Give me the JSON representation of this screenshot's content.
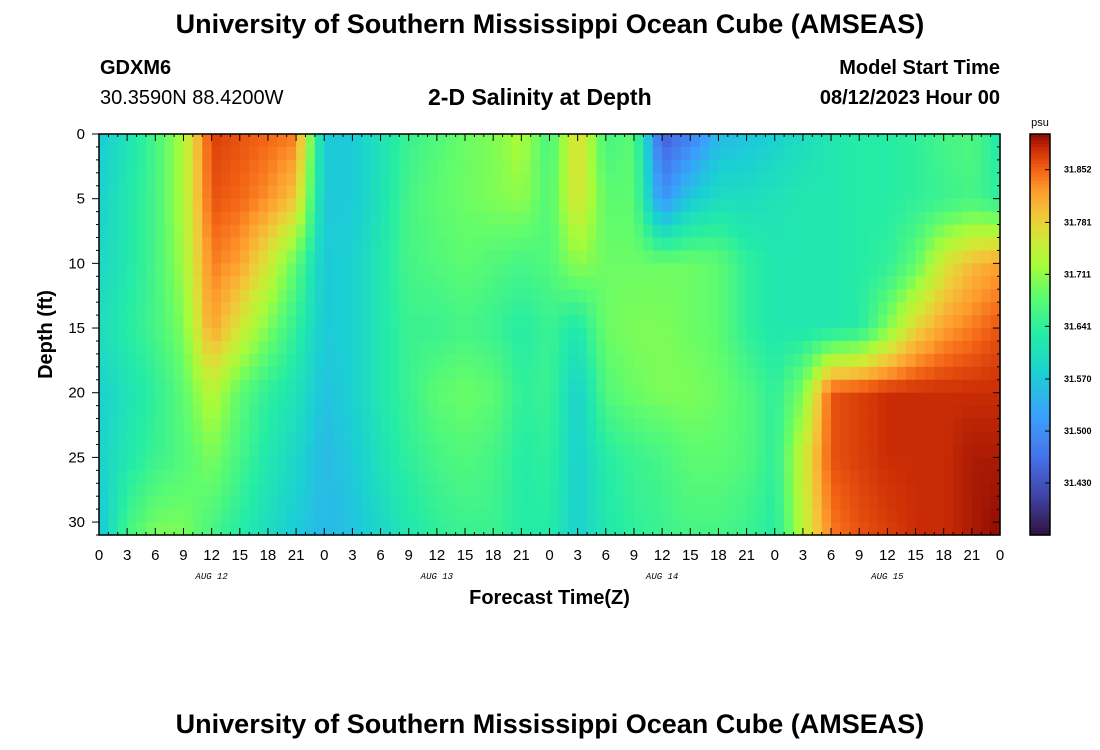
{
  "page": {
    "title": "University of Southern Mississippi Ocean Cube (AMSEAS)",
    "footer_title": "University of Southern Mississippi Ocean Cube (AMSEAS)",
    "station": "GDXM6",
    "coords": "30.3590N  88.4200W",
    "plot_title": "2-D Salinity at Depth",
    "start_label": "Model Start Time",
    "start_value": "08/12/2023 Hour 00"
  },
  "chart_data": {
    "type": "heatmap",
    "title": "2-D Salinity at Depth",
    "xlabel": "Forecast Time(Z)",
    "ylabel": "Depth (ft)",
    "x_hours_range": [
      0,
      96
    ],
    "ylim": [
      0,
      31
    ],
    "y_ticks": [
      0,
      5,
      10,
      15,
      20,
      25,
      30
    ],
    "x_tick_labels": [
      "0",
      "3",
      "6",
      "9",
      "12",
      "15",
      "18",
      "21",
      "0",
      "3",
      "6",
      "9",
      "12",
      "15",
      "18",
      "21",
      "0",
      "3",
      "6",
      "9",
      "12",
      "15",
      "18",
      "21",
      "0",
      "3",
      "6",
      "9",
      "12",
      "15",
      "18",
      "21",
      "0"
    ],
    "day_labels": [
      {
        "label": "AUG 12",
        "hour": 12
      },
      {
        "label": "AUG 13",
        "hour": 36
      },
      {
        "label": "AUG 14",
        "hour": 60
      },
      {
        "label": "AUG 15",
        "hour": 84
      }
    ],
    "colorbar": {
      "unit": "psu",
      "min": 31.36,
      "max": 31.9,
      "ticks": [
        "31.852",
        "31.781",
        "31.711",
        "31.641",
        "31.570",
        "31.500",
        "31.430"
      ],
      "tick_values": [
        31.852,
        31.781,
        31.711,
        31.641,
        31.57,
        31.5,
        31.43
      ]
    },
    "depth_levels_ft": [
      0,
      5,
      10,
      15,
      20,
      25,
      31
    ],
    "hours": [
      0,
      3,
      6,
      9,
      12,
      15,
      18,
      21,
      24,
      27,
      30,
      33,
      36,
      39,
      42,
      45,
      48,
      51,
      54,
      57,
      60,
      63,
      66,
      69,
      72,
      75,
      78,
      81,
      84,
      87,
      90,
      93,
      96
    ],
    "salinity_psu": [
      [
        31.57,
        31.61,
        31.66,
        31.73,
        31.87,
        31.86,
        31.85,
        31.84,
        31.57,
        31.57,
        31.61,
        31.65,
        31.67,
        31.69,
        31.7,
        31.73,
        31.66,
        31.78,
        31.66,
        31.68,
        31.44,
        31.48,
        31.55,
        31.56,
        31.58,
        31.6,
        31.62,
        31.63,
        31.63,
        31.64,
        31.66,
        31.67,
        31.62
      ],
      [
        31.58,
        31.62,
        31.66,
        31.73,
        31.86,
        31.85,
        31.83,
        31.79,
        31.57,
        31.57,
        31.61,
        31.66,
        31.68,
        31.69,
        31.7,
        31.71,
        31.67,
        31.77,
        31.68,
        31.68,
        31.5,
        31.57,
        31.6,
        31.6,
        31.61,
        31.62,
        31.62,
        31.63,
        31.63,
        31.64,
        31.65,
        31.66,
        31.64
      ],
      [
        31.59,
        31.62,
        31.66,
        31.72,
        31.84,
        31.82,
        31.76,
        31.68,
        31.57,
        31.58,
        31.62,
        31.66,
        31.67,
        31.68,
        31.67,
        31.66,
        31.67,
        31.71,
        31.69,
        31.69,
        31.69,
        31.69,
        31.68,
        31.64,
        31.62,
        31.62,
        31.62,
        31.63,
        31.64,
        31.68,
        31.76,
        31.8,
        31.82
      ],
      [
        31.6,
        31.63,
        31.66,
        31.7,
        31.82,
        31.76,
        31.7,
        31.64,
        31.57,
        31.58,
        31.62,
        31.65,
        31.65,
        31.66,
        31.65,
        31.63,
        31.65,
        31.62,
        31.69,
        31.7,
        31.7,
        31.69,
        31.68,
        31.64,
        31.62,
        31.62,
        31.62,
        31.63,
        31.7,
        31.78,
        31.82,
        31.84,
        31.86
      ],
      [
        31.58,
        31.61,
        31.64,
        31.68,
        31.74,
        31.68,
        31.64,
        31.61,
        31.56,
        31.58,
        31.62,
        31.65,
        31.68,
        31.69,
        31.68,
        31.64,
        31.65,
        31.58,
        31.67,
        31.69,
        31.7,
        31.7,
        31.69,
        31.67,
        31.64,
        31.7,
        31.86,
        31.87,
        31.88,
        31.88,
        31.88,
        31.88,
        31.88
      ],
      [
        31.58,
        31.62,
        31.65,
        31.67,
        31.7,
        31.66,
        31.62,
        31.59,
        31.55,
        31.57,
        31.61,
        31.64,
        31.66,
        31.67,
        31.66,
        31.63,
        31.64,
        31.58,
        31.63,
        31.65,
        31.66,
        31.68,
        31.68,
        31.67,
        31.64,
        31.75,
        31.86,
        31.87,
        31.88,
        31.88,
        31.88,
        31.89,
        31.89
      ],
      [
        31.56,
        31.66,
        31.7,
        31.7,
        31.66,
        31.63,
        31.6,
        31.57,
        31.55,
        31.56,
        31.59,
        31.62,
        31.64,
        31.65,
        31.65,
        31.63,
        31.63,
        31.58,
        31.62,
        31.64,
        31.65,
        31.66,
        31.66,
        31.65,
        31.63,
        31.74,
        31.84,
        31.86,
        31.87,
        31.88,
        31.88,
        31.89,
        31.9
      ]
    ]
  }
}
